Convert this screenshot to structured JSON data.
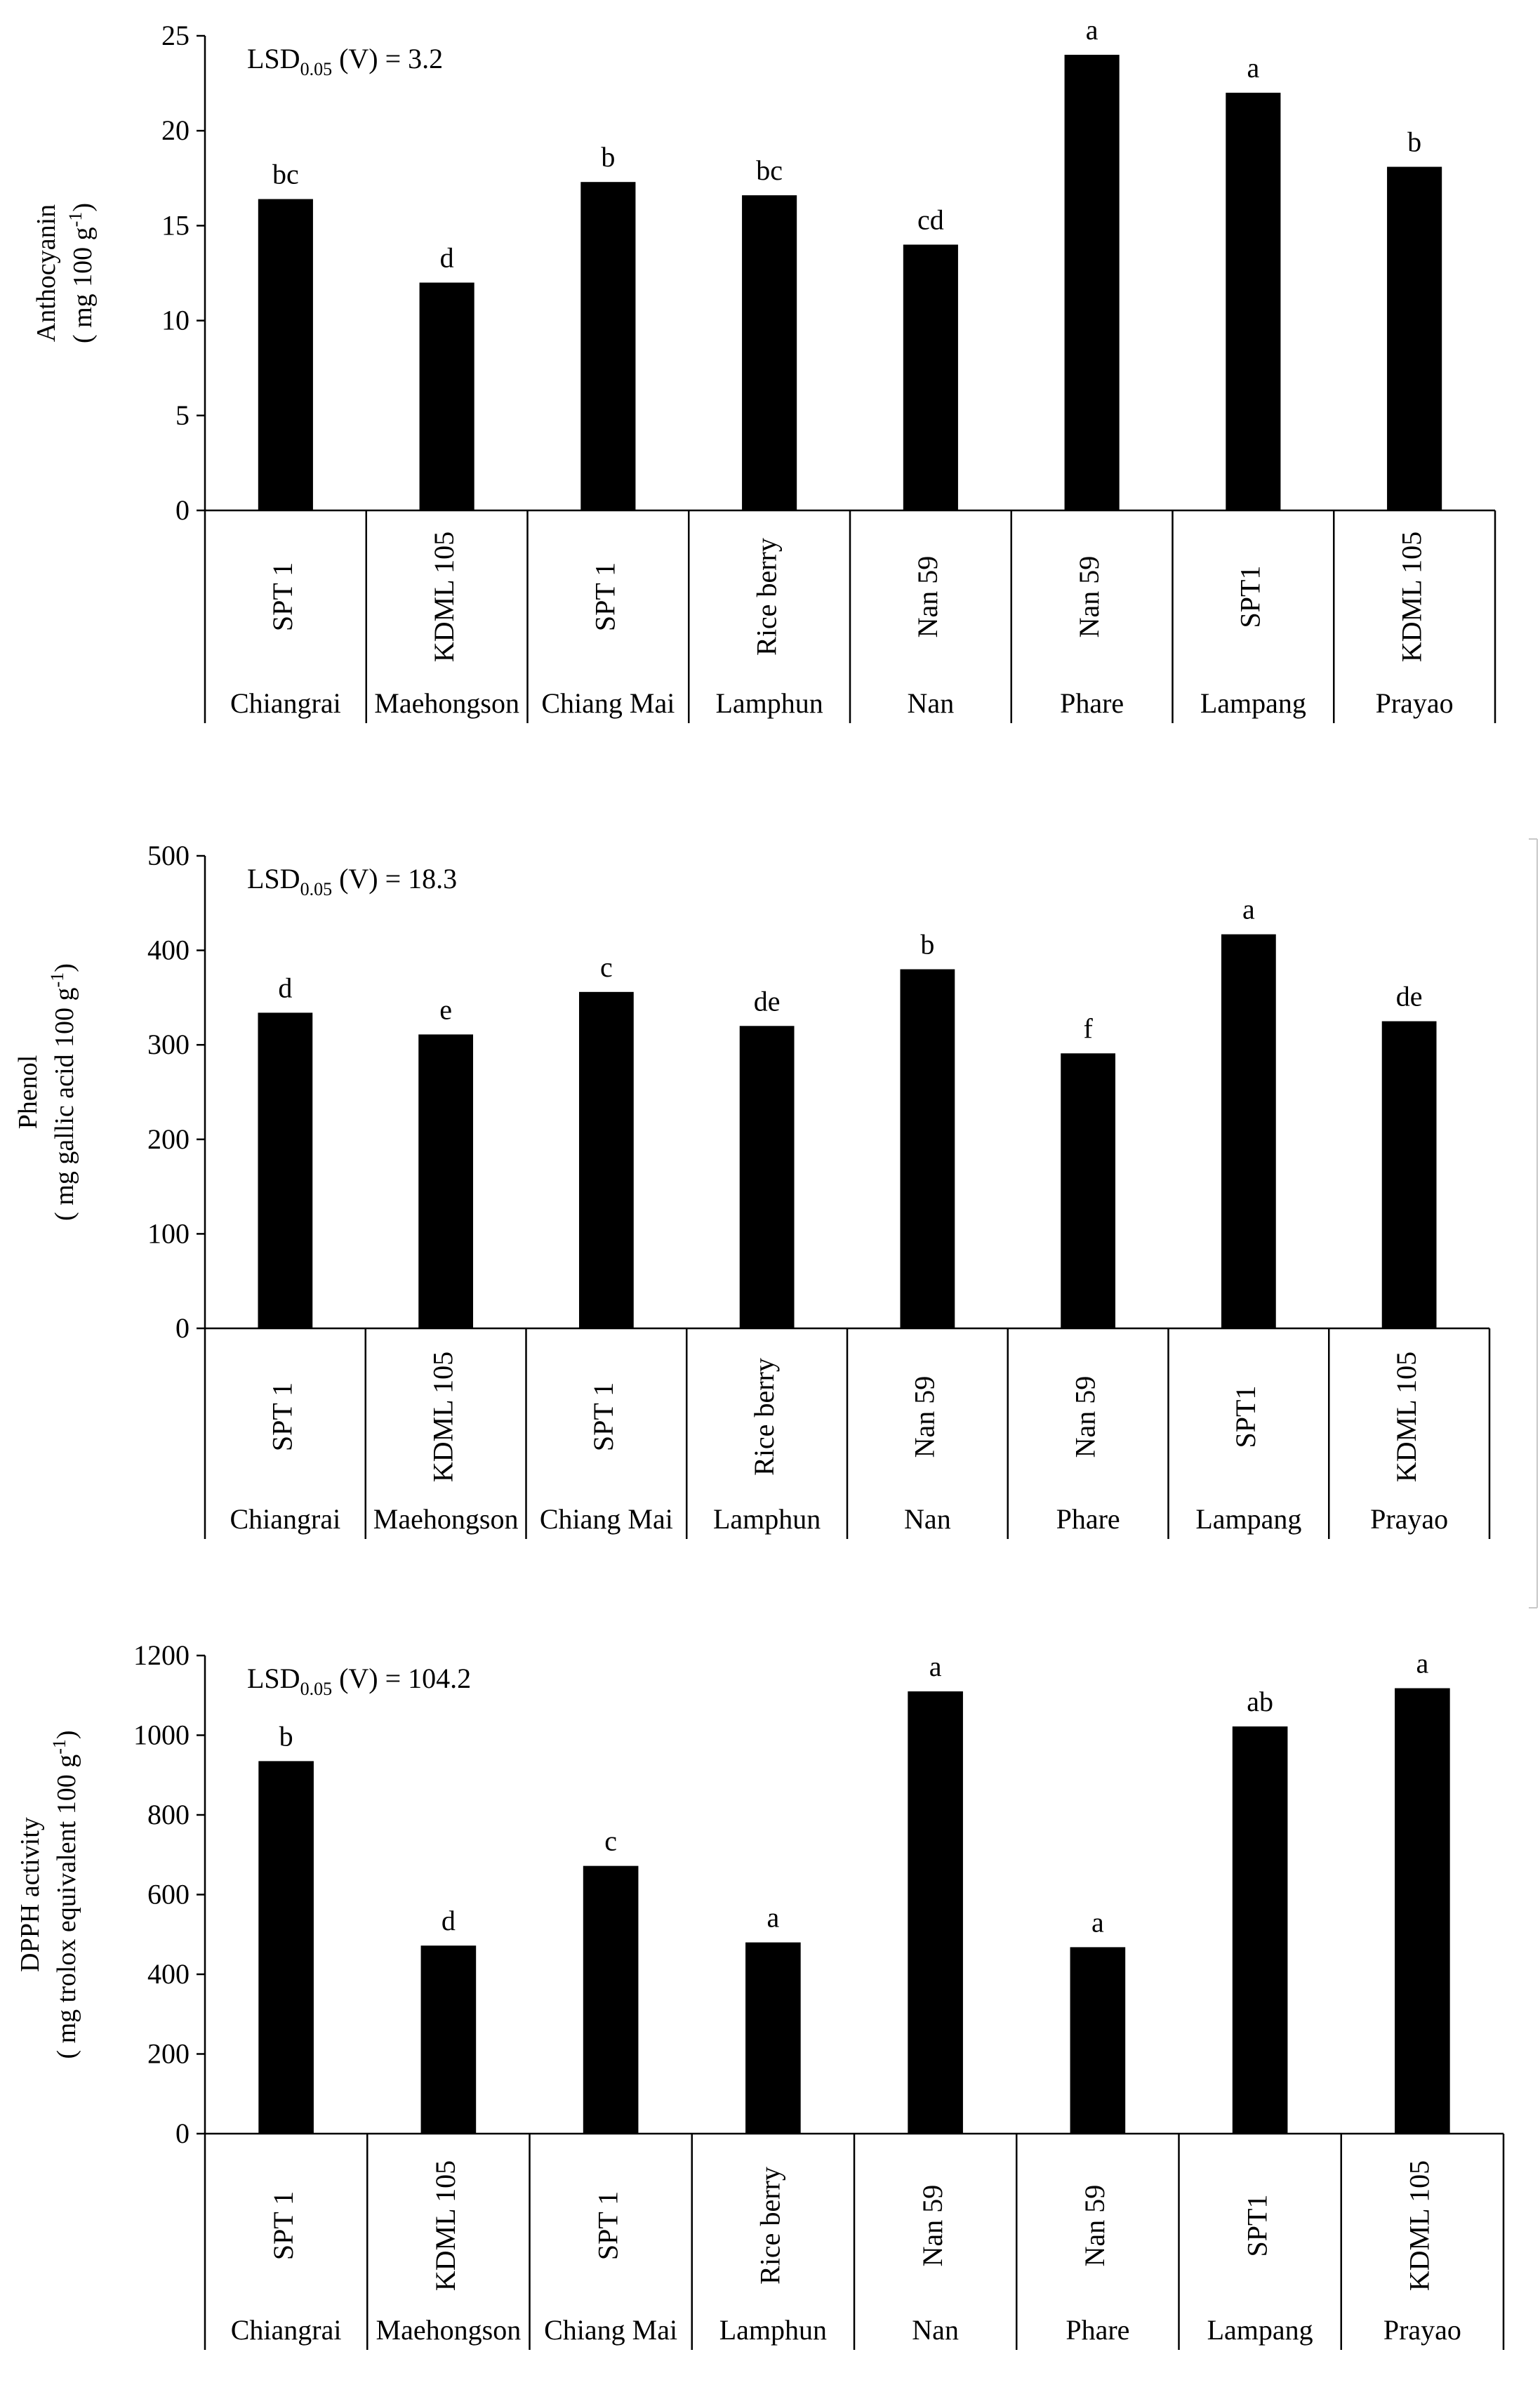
{
  "chart_data": [
    {
      "type": "bar",
      "id": "anthocyanin",
      "ylabel_line1": "Anthocyanin",
      "ylabel_line2": "( mg 100 g",
      "ylabel_sup": "-1",
      "ylabel_end": ")",
      "ylim": [
        0,
        25
      ],
      "yticks": [
        0,
        5,
        10,
        15,
        20,
        25
      ],
      "lsd_prefix": "LSD",
      "lsd_sub": "0.05",
      "lsd_suffix": " (V) = 3.2",
      "varieties": [
        "SPT 1",
        "KDML 105",
        "SPT 1",
        "Rice berry",
        "Nan 59",
        "Nan 59",
        "SPT1",
        "KDML 105"
      ],
      "provinces": [
        "Chiangrai",
        "Maehongson",
        "Chiang Mai",
        "Lamphun",
        "Nan",
        "Phare",
        "Lampang",
        "Prayao"
      ],
      "values": [
        16.4,
        12.0,
        17.3,
        16.6,
        14.0,
        24.0,
        22.0,
        18.1
      ],
      "letters": [
        "bc",
        "d",
        "b",
        "bc",
        "cd",
        "a",
        "a",
        "b"
      ]
    },
    {
      "type": "bar",
      "id": "phenol",
      "ylabel_line1": "Phenol",
      "ylabel_line2": "( mg gallic acid 100 g",
      "ylabel_sup": "-1",
      "ylabel_end": ")",
      "ylim": [
        0,
        500
      ],
      "yticks": [
        0,
        100,
        200,
        300,
        400,
        500
      ],
      "lsd_prefix": "LSD",
      "lsd_sub": "0.05",
      "lsd_suffix": " (V) = 18.3",
      "varieties": [
        "SPT 1",
        "KDML 105",
        "SPT 1",
        "Rice berry",
        "Nan 59",
        "Nan 59",
        "SPT1",
        "KDML 105"
      ],
      "provinces": [
        "Chiangrai",
        "Maehongson",
        "Chiang Mai",
        "Lamphun",
        "Nan",
        "Phare",
        "Lampang",
        "Prayao"
      ],
      "values": [
        334,
        311,
        356,
        320,
        380,
        291,
        417,
        325
      ],
      "letters": [
        "d",
        "e",
        "c",
        "de",
        "b",
        "f",
        "a",
        "de"
      ]
    },
    {
      "type": "bar",
      "id": "dpph",
      "ylabel_line1": "DPPH activity",
      "ylabel_line2": "( mg trolox equivalent 100 g",
      "ylabel_sup": "-1",
      "ylabel_end": ")",
      "ylim": [
        0,
        1200
      ],
      "yticks": [
        0,
        200,
        400,
        600,
        800,
        1000,
        1200
      ],
      "lsd_prefix": "LSD",
      "lsd_sub": "0.05",
      "lsd_suffix": " (V) = 104.2",
      "varieties": [
        "SPT 1",
        "KDML 105",
        "SPT 1",
        "Rice berry",
        "Nan 59",
        "Nan 59",
        "SPT1",
        "KDML 105"
      ],
      "provinces": [
        "Chiangrai",
        "Maehongson",
        "Chiang Mai",
        "Lamphun",
        "Nan",
        "Phare",
        "Lampang",
        "Prayao"
      ],
      "values": [
        935,
        472,
        672,
        480,
        1110,
        468,
        1022,
        1118
      ],
      "letters": [
        "b",
        "d",
        "c",
        "a",
        "a",
        "a",
        "ab",
        "a"
      ]
    }
  ]
}
